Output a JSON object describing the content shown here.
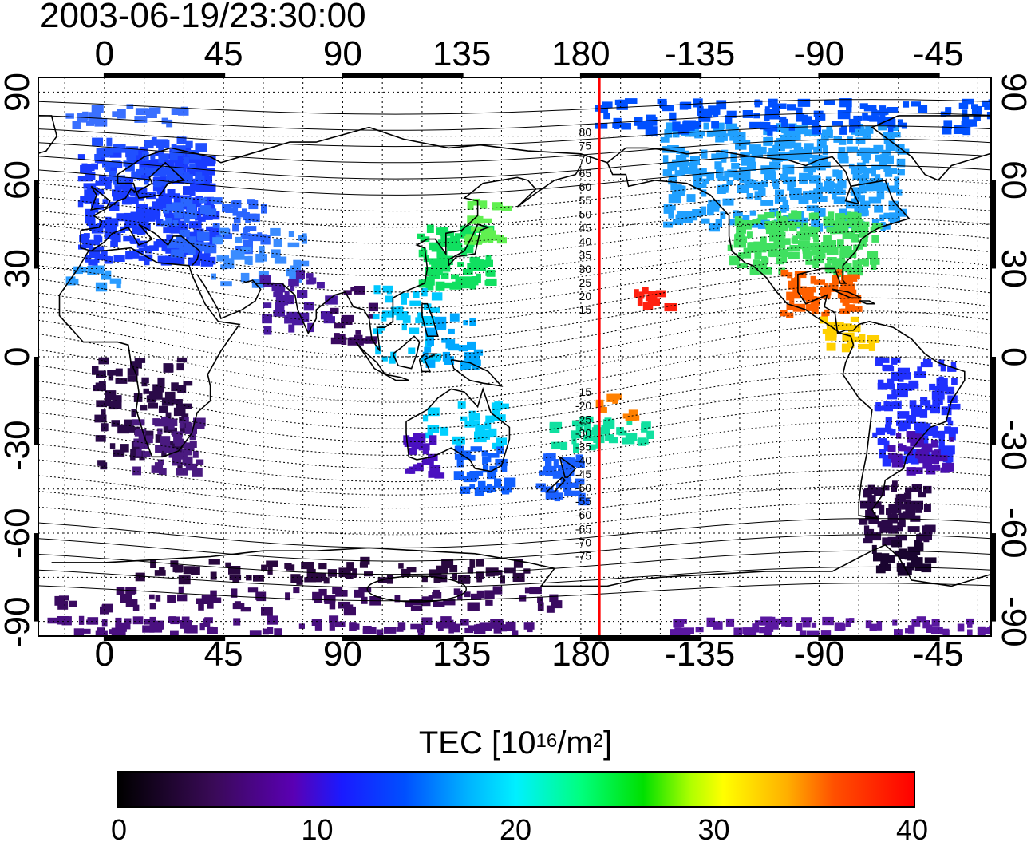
{
  "title": "2003-06-19/23:30:00",
  "lon_ticks": [
    "0",
    "45",
    "90",
    "135",
    "180",
    "-135",
    "-90",
    "-45"
  ],
  "lat_ticks": [
    "90",
    "60",
    "30",
    "0",
    "-30",
    "-60",
    "-90"
  ],
  "contour_labels": [
    "80",
    "75",
    "70",
    "65",
    "60",
    "55",
    "50",
    "45",
    "40",
    "35",
    "30",
    "25",
    "20",
    "15",
    "-15",
    "-20",
    "-25",
    "-30",
    "-35",
    "-40",
    "-45",
    "-50",
    "-55",
    "-60",
    "-65",
    "-70",
    "-75"
  ],
  "colorbar": {
    "title": "TEC  [10",
    "exp": "16",
    "unit_mid": "/m",
    "unit_exp": "2",
    "unit_end": "]",
    "ticks": [
      "0",
      "10",
      "20",
      "30",
      "40"
    ],
    "range": [
      0,
      40
    ],
    "colors": [
      "#000000",
      "#5a00b4",
      "#0050ff",
      "#00f0ff",
      "#00e000",
      "#ffff00",
      "#ff5000",
      "#ff0000"
    ]
  },
  "map": {
    "lon_range": [
      -25,
      335
    ],
    "lat_range": [
      -95,
      95
    ],
    "marker_color": "#ff0000",
    "marker_lon": 187
  }
}
